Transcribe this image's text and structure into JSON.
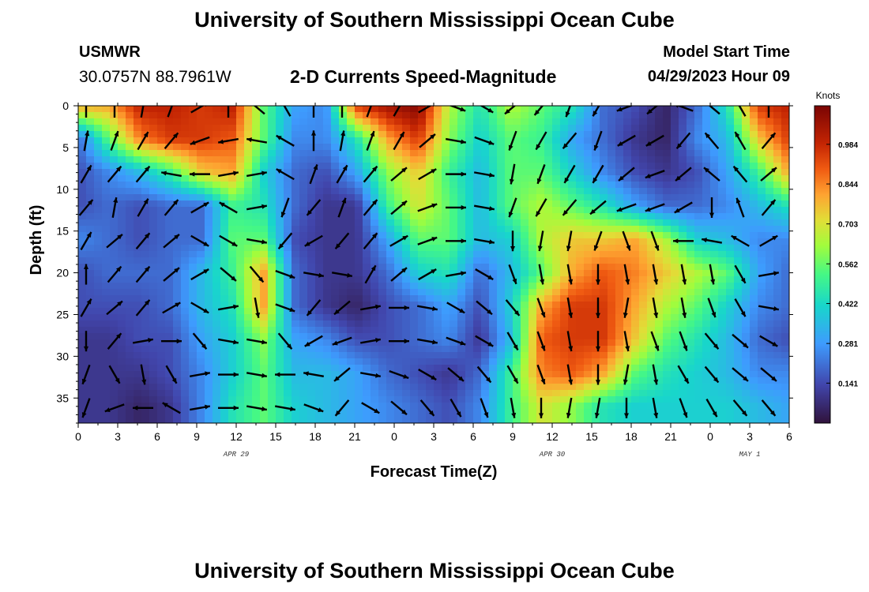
{
  "header": {
    "title": "University of Southern Mississippi Ocean Cube",
    "station": "USMWR",
    "coords": "30.0757N  88.7961W",
    "subtitle": "2-D Currents Speed-Magnitude",
    "model_label": "Model Start Time",
    "model_time": "04/29/2023 Hour 09"
  },
  "footer": {
    "title": "University of Southern Mississippi Ocean Cube"
  },
  "chart_data": {
    "type": "heatmap",
    "xlabel": "Forecast Time(Z)",
    "ylabel": "Depth (ft)",
    "x_tick_labels": [
      "0",
      "3",
      "6",
      "9",
      "12",
      "15",
      "18",
      "21",
      "0",
      "3",
      "6",
      "9",
      "12",
      "15",
      "18",
      "21",
      "0",
      "3",
      "6"
    ],
    "x_day_labels": [
      {
        "label": "APR 29",
        "at_tick": 4
      },
      {
        "label": "APR 30",
        "at_tick": 12
      },
      {
        "label": "MAY 1",
        "at_tick": 17
      }
    ],
    "y_ticks": [
      0,
      5,
      10,
      15,
      20,
      25,
      30,
      35
    ],
    "ylim": [
      0,
      38
    ],
    "y_inverted": true,
    "colorbar": {
      "unit": "Knots",
      "ticks": [
        0.984,
        0.844,
        0.703,
        0.562,
        0.422,
        0.281,
        0.141
      ],
      "range": [
        0.0,
        1.12
      ]
    },
    "depths": [
      0,
      4,
      8,
      12,
      16,
      20,
      24,
      28,
      32,
      36
    ],
    "speed_grid": [
      [
        0.8,
        0.8,
        1.0,
        1.0,
        0.95,
        1.0,
        0.55,
        0.3,
        0.25,
        0.95,
        1.05,
        1.1,
        0.65,
        0.45,
        0.65,
        0.55,
        0.45,
        0.2,
        0.15,
        0.05,
        0.2,
        0.45,
        0.95,
        1.0
      ],
      [
        0.2,
        0.55,
        0.85,
        0.95,
        0.95,
        0.9,
        0.55,
        0.25,
        0.25,
        0.45,
        0.8,
        0.95,
        0.6,
        0.4,
        0.55,
        0.5,
        0.3,
        0.2,
        0.1,
        0.05,
        0.25,
        0.35,
        0.75,
        0.95
      ],
      [
        0.15,
        0.25,
        0.35,
        0.5,
        0.75,
        0.8,
        0.4,
        0.2,
        0.15,
        0.3,
        0.6,
        0.75,
        0.5,
        0.35,
        0.55,
        0.55,
        0.4,
        0.25,
        0.15,
        0.1,
        0.15,
        0.3,
        0.5,
        0.8
      ],
      [
        0.15,
        0.2,
        0.15,
        0.2,
        0.2,
        0.5,
        0.45,
        0.2,
        0.1,
        0.1,
        0.5,
        0.7,
        0.55,
        0.35,
        0.55,
        0.65,
        0.55,
        0.45,
        0.3,
        0.2,
        0.2,
        0.25,
        0.35,
        0.45
      ],
      [
        0.25,
        0.2,
        0.15,
        0.2,
        0.2,
        0.55,
        0.55,
        0.15,
        0.1,
        0.1,
        0.3,
        0.55,
        0.55,
        0.35,
        0.4,
        0.65,
        0.75,
        0.75,
        0.8,
        0.65,
        0.4,
        0.35,
        0.25,
        0.25
      ],
      [
        0.15,
        0.2,
        0.2,
        0.2,
        0.35,
        0.5,
        0.8,
        0.2,
        0.1,
        0.1,
        0.2,
        0.4,
        0.45,
        0.2,
        0.35,
        0.55,
        0.8,
        0.9,
        0.85,
        0.75,
        0.65,
        0.55,
        0.3,
        0.2
      ],
      [
        0.15,
        0.15,
        0.15,
        0.2,
        0.35,
        0.45,
        0.8,
        0.2,
        0.1,
        0.05,
        0.15,
        0.2,
        0.3,
        0.15,
        0.4,
        0.8,
        0.95,
        0.95,
        0.8,
        0.65,
        0.55,
        0.4,
        0.25,
        0.2
      ],
      [
        0.1,
        0.1,
        0.15,
        0.15,
        0.3,
        0.4,
        0.6,
        0.3,
        0.25,
        0.15,
        0.15,
        0.2,
        0.25,
        0.1,
        0.35,
        0.9,
        0.95,
        0.95,
        0.75,
        0.55,
        0.45,
        0.35,
        0.2,
        0.15
      ],
      [
        0.1,
        0.1,
        0.1,
        0.15,
        0.25,
        0.4,
        0.55,
        0.35,
        0.35,
        0.3,
        0.2,
        0.15,
        0.1,
        0.2,
        0.5,
        0.85,
        0.9,
        0.8,
        0.55,
        0.45,
        0.4,
        0.35,
        0.25,
        0.25
      ],
      [
        0.1,
        0.1,
        0.05,
        0.1,
        0.25,
        0.45,
        0.55,
        0.4,
        0.35,
        0.3,
        0.25,
        0.2,
        0.15,
        0.25,
        0.5,
        0.7,
        0.6,
        0.45,
        0.4,
        0.4,
        0.4,
        0.4,
        0.35,
        0.3
      ]
    ],
    "arrow_rows_depth": [
      0,
      4,
      8,
      12,
      16,
      20,
      24,
      28,
      32,
      36
    ],
    "arrow_dir_grid": [
      [
        0,
        0,
        10,
        20,
        60,
        0,
        310,
        330,
        0,
        0,
        20,
        30,
        60,
        110,
        120,
        230,
        220,
        200,
        210,
        250,
        230,
        290,
        310,
        330,
        0
      ],
      [
        10,
        20,
        30,
        40,
        250,
        260,
        280,
        300,
        0,
        10,
        20,
        30,
        50,
        100,
        110,
        200,
        210,
        220,
        200,
        240,
        240,
        220,
        320,
        330,
        40
      ],
      [
        30,
        40,
        40,
        280,
        270,
        80,
        80,
        300,
        20,
        30,
        40,
        50,
        60,
        90,
        100,
        190,
        200,
        210,
        210,
        230,
        250,
        230,
        310,
        320,
        50
      ],
      [
        40,
        10,
        30,
        40,
        60,
        300,
        80,
        200,
        220,
        20,
        40,
        50,
        70,
        90,
        100,
        200,
        210,
        220,
        230,
        250,
        250,
        240,
        180,
        340,
        40
      ],
      [
        30,
        50,
        40,
        50,
        120,
        120,
        100,
        220,
        240,
        220,
        40,
        60,
        70,
        90,
        100,
        180,
        190,
        190,
        200,
        160,
        160,
        270,
        280,
        300,
        60
      ],
      [
        0,
        40,
        40,
        50,
        60,
        130,
        140,
        110,
        100,
        100,
        30,
        50,
        60,
        80,
        120,
        160,
        170,
        170,
        180,
        170,
        170,
        170,
        170,
        150,
        80
      ],
      [
        30,
        50,
        40,
        60,
        120,
        80,
        170,
        110,
        220,
        230,
        80,
        90,
        100,
        120,
        130,
        140,
        160,
        170,
        180,
        190,
        170,
        170,
        160,
        150,
        100
      ],
      [
        180,
        40,
        80,
        90,
        140,
        100,
        100,
        140,
        240,
        250,
        80,
        90,
        100,
        110,
        120,
        150,
        160,
        170,
        180,
        170,
        160,
        160,
        140,
        130,
        120
      ],
      [
        200,
        150,
        170,
        150,
        80,
        90,
        100,
        270,
        280,
        230,
        100,
        110,
        120,
        130,
        140,
        150,
        160,
        170,
        180,
        190,
        170,
        150,
        140,
        130,
        130
      ],
      [
        200,
        250,
        270,
        300,
        80,
        90,
        100,
        100,
        110,
        220,
        120,
        130,
        140,
        150,
        160,
        170,
        180,
        190,
        190,
        180,
        170,
        160,
        150,
        140,
        140
      ]
    ]
  }
}
